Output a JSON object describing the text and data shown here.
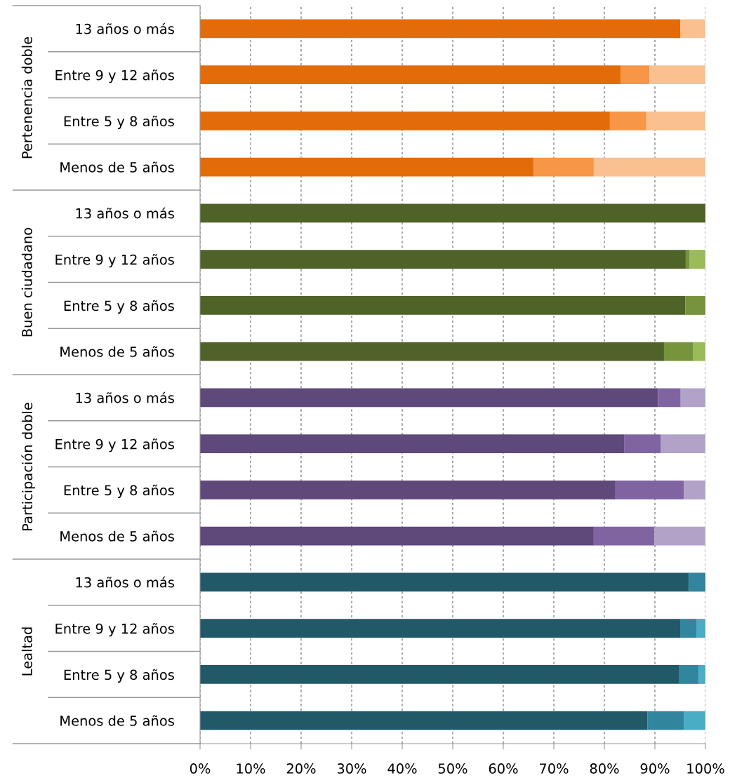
{
  "chart_data": {
    "type": "bar",
    "orientation": "horizontal",
    "stacked": true,
    "categories": [
      "13 años o más",
      "Entre 9 y 12 años",
      "Entre 5 y 8 años",
      "Menos de 5 años",
      "13 años o más",
      "Entre 9 y 12 años",
      "Entre 5 y 8 años",
      "Menos de 5 años",
      "13 años o más",
      "Entre 9 y 12 años",
      "Entre 5 y 8 años",
      "Menos de 5 años",
      "13 años o más",
      "Entre 9 y 12 años",
      "Entre 5 y 8 años",
      "Menos de 5 años"
    ],
    "series": [
      {
        "values": [
          95.0,
          83.2,
          81.1,
          66.0,
          100,
          96.1,
          96.0,
          91.8,
          90.6,
          83.9,
          82.2,
          77.9,
          96.7,
          95.0,
          94.9,
          88.5
        ],
        "colors": [
          "#e36c0a",
          "#e36c0a",
          "#e36c0a",
          "#e36c0a",
          "#4f6228",
          "#4f6228",
          "#4f6228",
          "#4f6228",
          "#5f497a",
          "#5f497a",
          "#5f497a",
          "#5f497a",
          "#215968",
          "#215968",
          "#215968",
          "#215968"
        ]
      },
      {
        "values": [
          0,
          5.7,
          7.2,
          11.9,
          0,
          0.8,
          4.0,
          5.8,
          4.5,
          7.3,
          13.5,
          12.0,
          3.3,
          3.3,
          3.8,
          7.2
        ],
        "colors": [
          "#f79646",
          "#f79646",
          "#f79646",
          "#f79646",
          "#77933c",
          "#77933c",
          "#77933c",
          "#77933c",
          "#8064a2",
          "#8064a2",
          "#8064a2",
          "#8064a2",
          "#31859c",
          "#31859c",
          "#31859c",
          "#31859c"
        ]
      },
      {
        "values": [
          5.0,
          11.1,
          11.7,
          22.1,
          0,
          3.1,
          0,
          2.4,
          4.9,
          8.8,
          4.3,
          10.1,
          0,
          1.7,
          1.3,
          4.3
        ],
        "colors": [
          "#fac090",
          "#fac090",
          "#fac090",
          "#fac090",
          "#9bbb59",
          "#9bbb59",
          "#9bbb59",
          "#9bbb59",
          "#b2a2c7",
          "#b2a2c7",
          "#b2a2c7",
          "#b2a2c7",
          "#4bacc6",
          "#4bacc6",
          "#4bacc6",
          "#4bacc6"
        ]
      }
    ],
    "annotations": [
      "Pertenencia doble",
      "Buen ciudadano",
      "Participación doble",
      "Lealtad"
    ],
    "xlim": [
      0,
      100
    ],
    "xticks": [
      {
        "value": 0,
        "label": "0%"
      },
      {
        "value": 10,
        "label": "10%"
      },
      {
        "value": 20,
        "label": "20%"
      },
      {
        "value": 30,
        "label": "30%"
      },
      {
        "value": 40,
        "label": "40%"
      },
      {
        "value": 50,
        "label": "50%"
      },
      {
        "value": 60,
        "label": "60%"
      },
      {
        "value": 70,
        "label": "70%"
      },
      {
        "value": 80,
        "label": "80%"
      },
      {
        "value": 90,
        "label": "90%"
      },
      {
        "value": 100,
        "label": "100%"
      }
    ],
    "grid": "x",
    "legend": false
  }
}
